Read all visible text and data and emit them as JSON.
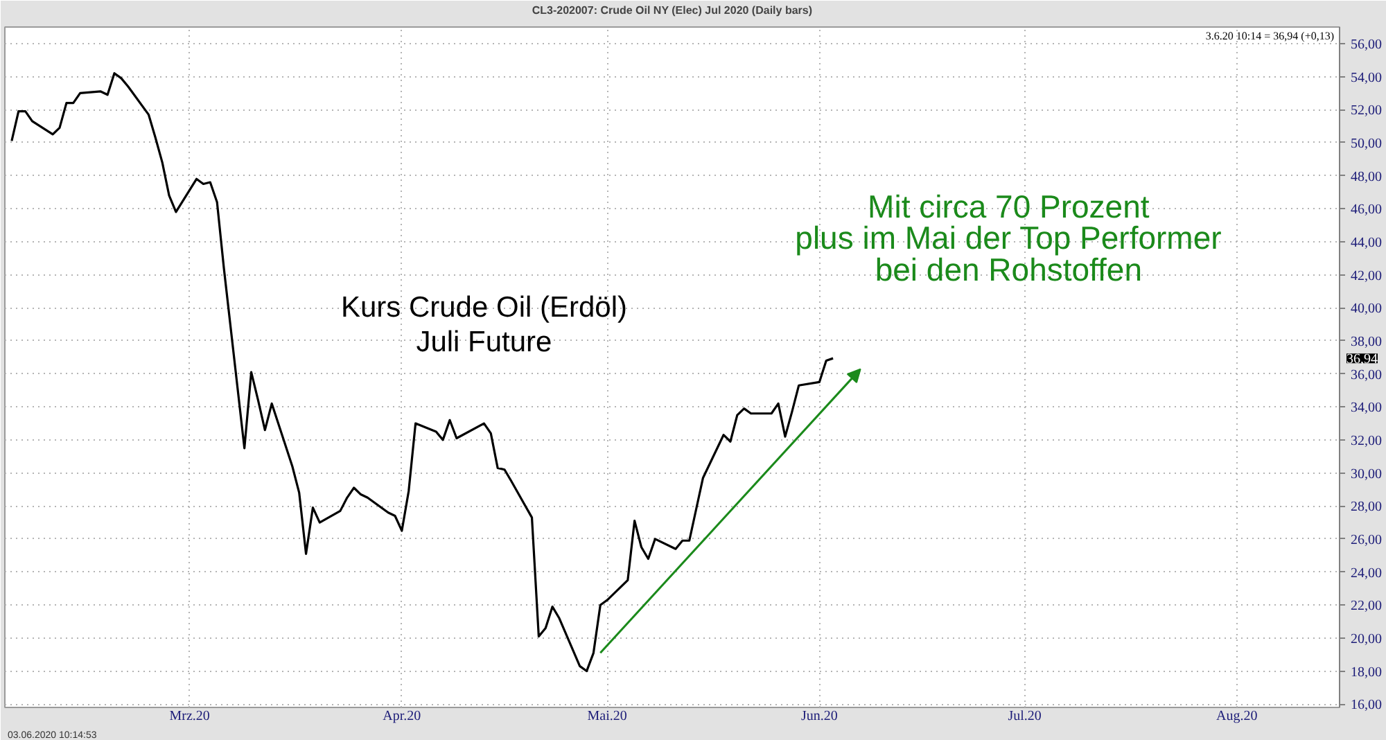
{
  "chart_data": {
    "type": "line",
    "title": "CL3-202007: Crude Oil NY (Elec) Jul 2020 (Daily bars)",
    "x": [
      "2020-02-04",
      "2020-02-05",
      "2020-02-06",
      "2020-02-07",
      "2020-02-10",
      "2020-02-11",
      "2020-02-12",
      "2020-02-13",
      "2020-02-14",
      "2020-02-17",
      "2020-02-18",
      "2020-02-19",
      "2020-02-20",
      "2020-02-21",
      "2020-02-24",
      "2020-02-25",
      "2020-02-26",
      "2020-02-27",
      "2020-02-28",
      "2020-03-02",
      "2020-03-03",
      "2020-03-04",
      "2020-03-05",
      "2020-03-06",
      "2020-03-09",
      "2020-03-10",
      "2020-03-11",
      "2020-03-12",
      "2020-03-13",
      "2020-03-16",
      "2020-03-17",
      "2020-03-18",
      "2020-03-19",
      "2020-03-20",
      "2020-03-23",
      "2020-03-24",
      "2020-03-25",
      "2020-03-26",
      "2020-03-27",
      "2020-03-30",
      "2020-03-31",
      "2020-04-01",
      "2020-04-02",
      "2020-04-03",
      "2020-04-06",
      "2020-04-07",
      "2020-04-08",
      "2020-04-09",
      "2020-04-13",
      "2020-04-14",
      "2020-04-15",
      "2020-04-16",
      "2020-04-17",
      "2020-04-20",
      "2020-04-21",
      "2020-04-22",
      "2020-04-23",
      "2020-04-24",
      "2020-04-27",
      "2020-04-28",
      "2020-04-29",
      "2020-04-30",
      "2020-05-01",
      "2020-05-04",
      "2020-05-05",
      "2020-05-06",
      "2020-05-07",
      "2020-05-08",
      "2020-05-11",
      "2020-05-12",
      "2020-05-13",
      "2020-05-14",
      "2020-05-15",
      "2020-05-18",
      "2020-05-19",
      "2020-05-20",
      "2020-05-21",
      "2020-05-22",
      "2020-05-25",
      "2020-05-26",
      "2020-05-27",
      "2020-05-28",
      "2020-05-29",
      "2020-06-01",
      "2020-06-02",
      "2020-06-03"
    ],
    "values": [
      50.1,
      51.9,
      51.9,
      51.3,
      50.5,
      50.9,
      52.4,
      52.4,
      53.0,
      53.1,
      52.9,
      54.2,
      53.9,
      53.4,
      51.7,
      50.3,
      48.8,
      46.8,
      45.8,
      47.8,
      47.5,
      47.6,
      46.4,
      42.4,
      31.5,
      36.1,
      34.4,
      32.6,
      34.2,
      30.4,
      28.8,
      25.1,
      27.9,
      27.0,
      27.7,
      28.5,
      29.1,
      28.7,
      28.5,
      27.6,
      27.4,
      26.5,
      28.9,
      33.0,
      32.5,
      32.0,
      33.2,
      32.1,
      33.0,
      32.4,
      30.3,
      30.2,
      29.5,
      27.3,
      20.1,
      20.6,
      21.9,
      21.2,
      18.3,
      18.0,
      19.1,
      22.0,
      22.3,
      23.5,
      27.1,
      25.5,
      24.8,
      26.0,
      25.4,
      25.9,
      25.9,
      27.8,
      29.7,
      32.3,
      31.9,
      33.5,
      33.9,
      33.6,
      33.6,
      34.2,
      32.2,
      33.7,
      35.3,
      35.5,
      36.8,
      36.94
    ],
    "color": "#000000",
    "xlim": [
      "2020-02-03",
      "2020-08-16"
    ],
    "xticks": [
      {
        "value": "2020-03-01",
        "label": "Mrz.20"
      },
      {
        "value": "2020-04-01",
        "label": "Apr.20"
      },
      {
        "value": "2020-05-01",
        "label": "Mai.20"
      },
      {
        "value": "2020-06-01",
        "label": "Jun.20"
      },
      {
        "value": "2020-07-01",
        "label": "Jul.20"
      },
      {
        "value": "2020-08-01",
        "label": "Aug.20"
      }
    ],
    "ylim": [
      15.8,
      57.0
    ],
    "yticks": [
      {
        "value": 16,
        "label": "16,00"
      },
      {
        "value": 18,
        "label": "18,00"
      },
      {
        "value": 20,
        "label": "20,00"
      },
      {
        "value": 22,
        "label": "22,00"
      },
      {
        "value": 24,
        "label": "24,00"
      },
      {
        "value": 26,
        "label": "26,00"
      },
      {
        "value": 28,
        "label": "28,00"
      },
      {
        "value": 30,
        "label": "30,00"
      },
      {
        "value": 32,
        "label": "32,00"
      },
      {
        "value": 34,
        "label": "34,00"
      },
      {
        "value": 36,
        "label": "36,00"
      },
      {
        "value": 38,
        "label": "38,00"
      },
      {
        "value": 40,
        "label": "40,00"
      },
      {
        "value": 42,
        "label": "42,00"
      },
      {
        "value": 44,
        "label": "44,00"
      },
      {
        "value": 46,
        "label": "46,00"
      },
      {
        "value": 48,
        "label": "48,00"
      },
      {
        "value": 50,
        "label": "50,00"
      },
      {
        "value": 52,
        "label": "52,00"
      },
      {
        "value": 54,
        "label": "54,00"
      },
      {
        "value": 56,
        "label": "56,00"
      }
    ],
    "grid": true,
    "annotations": [
      "3.6.20 10:14 = 36,94 (+0,13)",
      "36,94",
      "Kurs Crude Oil (Erdöl)\nJuli Future",
      "Mit circa 70 Prozent\nplus im Mai der Top Performer\nbei den Rohstoffen",
      "03.06.2020 10:14:53"
    ]
  }
}
